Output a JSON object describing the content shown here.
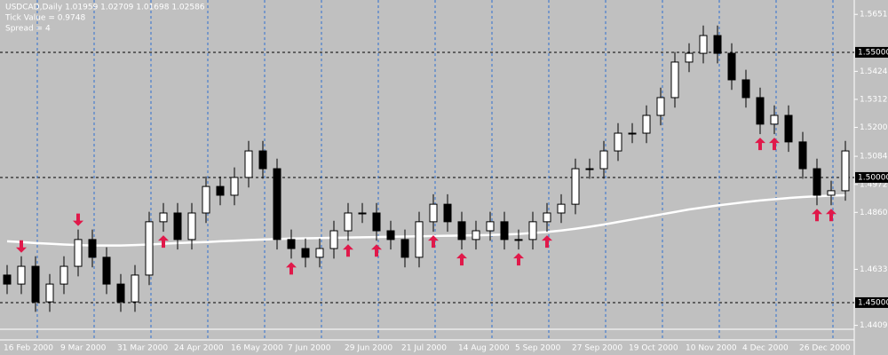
{
  "chart_data": {
    "type": "candlestick",
    "header": [
      "USDCAD,Daily  1.01959 1.02709 1.01698 1.02586",
      "Tick Value = 0.9748",
      "Spread = 4"
    ],
    "categories": [
      "16 Feb 2000",
      null,
      null,
      null,
      "9 Mar 2000",
      null,
      null,
      null,
      "31 Mar 2000",
      null,
      null,
      null,
      "24 Apr 2000",
      null,
      null,
      null,
      "16 May 2000",
      null,
      null,
      null,
      "7 Jun 2000",
      null,
      null,
      null,
      "29 Jun 2000",
      null,
      null,
      null,
      "21 Jul 2000",
      null,
      null,
      null,
      "14 Aug 2000",
      null,
      null,
      null,
      "5 Sep 2000",
      null,
      null,
      null,
      "27 Sep 2000",
      null,
      null,
      null,
      "19 Oct 2000",
      null,
      null,
      null,
      "10 Nov 2000",
      null,
      null,
      null,
      "4 Dec 2000",
      null,
      null,
      null,
      "26 Dec 2000",
      null,
      null,
      null
    ],
    "open": [
      1.461,
      1.4574,
      1.4645,
      1.4503,
      1.4574,
      1.4645,
      1.4752,
      1.4681,
      1.4574,
      1.4503,
      1.461,
      1.4823,
      1.4858,
      1.4752,
      1.4858,
      1.4964,
      1.4929,
      1.5,
      1.5106,
      1.5035,
      1.4752,
      1.4716,
      1.4681,
      1.4716,
      1.4787,
      1.4858,
      1.4858,
      1.4787,
      1.4752,
      1.4681,
      1.4823,
      1.4893,
      1.4823,
      1.4752,
      1.4787,
      1.4823,
      1.4752,
      1.4752,
      1.4823,
      1.4858,
      1.4893,
      1.5035,
      1.5035,
      1.5106,
      1.5177,
      1.5177,
      1.5248,
      1.5319,
      1.5461,
      1.5496,
      1.5567,
      1.5496,
      1.539,
      1.5319,
      1.5213,
      1.5248,
      1.5142,
      1.5035,
      1.4929,
      1.4947
    ],
    "high": [
      1.465,
      1.4685,
      1.4685,
      1.4614,
      1.4685,
      1.4792,
      1.4792,
      1.4721,
      1.4614,
      1.465,
      1.4863,
      1.4898,
      1.4898,
      1.4898,
      1.5004,
      1.5004,
      1.504,
      1.5146,
      1.5146,
      1.5075,
      1.4792,
      1.4756,
      1.4756,
      1.4827,
      1.4898,
      1.4898,
      1.4898,
      1.4827,
      1.4792,
      1.4863,
      1.4933,
      1.4933,
      1.4863,
      1.4827,
      1.4863,
      1.4863,
      1.4792,
      1.4863,
      1.4898,
      1.4933,
      1.5075,
      1.5075,
      1.5146,
      1.5217,
      1.5217,
      1.5288,
      1.5359,
      1.5501,
      1.5536,
      1.5607,
      1.5607,
      1.5536,
      1.543,
      1.5359,
      1.5288,
      1.5288,
      1.5182,
      1.5075,
      1.4987,
      1.5146
    ],
    "low": [
      1.4534,
      1.4534,
      1.4463,
      1.4463,
      1.4534,
      1.4605,
      1.4641,
      1.4534,
      1.4463,
      1.4463,
      1.457,
      1.4783,
      1.4712,
      1.4712,
      1.4818,
      1.4889,
      1.4889,
      1.496,
      1.4995,
      1.4712,
      1.4676,
      1.4641,
      1.4641,
      1.4676,
      1.4747,
      1.4818,
      1.4747,
      1.4712,
      1.4641,
      1.4641,
      1.4783,
      1.4783,
      1.4712,
      1.4712,
      1.4747,
      1.4712,
      1.4712,
      1.4712,
      1.4783,
      1.4818,
      1.4853,
      1.4995,
      1.4995,
      1.5066,
      1.5137,
      1.5137,
      1.5208,
      1.5279,
      1.5421,
      1.5456,
      1.5456,
      1.535,
      1.5279,
      1.5173,
      1.5173,
      1.5102,
      1.4995,
      1.4889,
      1.4889,
      1.4907
    ],
    "close": [
      1.4574,
      1.4645,
      1.4503,
      1.4574,
      1.4645,
      1.4752,
      1.4681,
      1.4574,
      1.4503,
      1.461,
      1.4823,
      1.4858,
      1.4752,
      1.4858,
      1.4964,
      1.4929,
      1.5,
      1.5106,
      1.5035,
      1.4752,
      1.4716,
      1.4681,
      1.4716,
      1.4787,
      1.4858,
      1.4858,
      1.4787,
      1.4752,
      1.4681,
      1.4823,
      1.4893,
      1.4823,
      1.4752,
      1.4787,
      1.4823,
      1.4752,
      1.4752,
      1.4823,
      1.4858,
      1.4893,
      1.5035,
      1.5035,
      1.5106,
      1.5177,
      1.5177,
      1.5248,
      1.5319,
      1.5461,
      1.5496,
      1.5567,
      1.5496,
      1.539,
      1.5319,
      1.5213,
      1.5248,
      1.5142,
      1.5035,
      1.4929,
      1.4947,
      1.5106
    ],
    "moving_average": [
      1.4745,
      1.4742,
      1.4738,
      1.4735,
      1.4732,
      1.473,
      1.4728,
      1.4728,
      1.4728,
      1.473,
      1.4732,
      1.4735,
      1.4738,
      1.474,
      1.4742,
      1.4745,
      1.4747,
      1.475,
      1.4752,
      1.4754,
      1.4756,
      1.4757,
      1.4758,
      1.4759,
      1.476,
      1.4761,
      1.4762,
      1.4763,
      1.4764,
      1.4765,
      1.4766,
      1.4767,
      1.4768,
      1.4769,
      1.477,
      1.4772,
      1.4774,
      1.4778,
      1.4782,
      1.4788,
      1.4795,
      1.4803,
      1.4812,
      1.4822,
      1.4832,
      1.4842,
      1.4852,
      1.4862,
      1.4872,
      1.488,
      1.4888,
      1.4895,
      1.4902,
      1.4908,
      1.4913,
      1.4918,
      1.4922,
      1.4925,
      1.4927,
      1.4929
    ],
    "buy_signals": [
      null,
      null,
      null,
      null,
      null,
      null,
      null,
      null,
      null,
      null,
      null,
      1.4783,
      null,
      null,
      null,
      null,
      null,
      null,
      null,
      null,
      1.4676,
      null,
      null,
      null,
      1.4747,
      null,
      1.4747,
      null,
      null,
      null,
      1.4783,
      null,
      1.4712,
      null,
      null,
      null,
      1.4712,
      null,
      1.4783,
      null,
      null,
      null,
      null,
      null,
      null,
      null,
      null,
      null,
      null,
      null,
      null,
      null,
      null,
      1.5173,
      1.5173,
      null,
      null,
      1.4889,
      1.4889,
      null
    ],
    "sell_signals": [
      null,
      1.4685,
      null,
      null,
      null,
      1.4792,
      null,
      null,
      null,
      null,
      null,
      null,
      null,
      null,
      null,
      null,
      null,
      null,
      null,
      null,
      null,
      null,
      null,
      null,
      null,
      null,
      null,
      null,
      null,
      null,
      null,
      null,
      null,
      null,
      null,
      null,
      null,
      null,
      null,
      null,
      null,
      null,
      null,
      null,
      null,
      null,
      null,
      null,
      null,
      null,
      null,
      null,
      null,
      null,
      null,
      null,
      null,
      null,
      null,
      null
    ],
    "ylim": [
      1.4397,
      1.5709
    ],
    "yticks": [
      1.56515,
      1.5424,
      1.5312,
      {
        "value": 1.52,
        "label": "1.5200"
      },
      1.50845,
      1.4972,
      1.48605,
      1.4633,
      1.4409
    ],
    "levels": [
      {
        "value": 1.55,
        "label": "1.55000"
      },
      {
        "value": 1.5,
        "label": "1.50000"
      },
      {
        "value": 1.45,
        "label": "1.45000"
      }
    ],
    "grid": true
  }
}
